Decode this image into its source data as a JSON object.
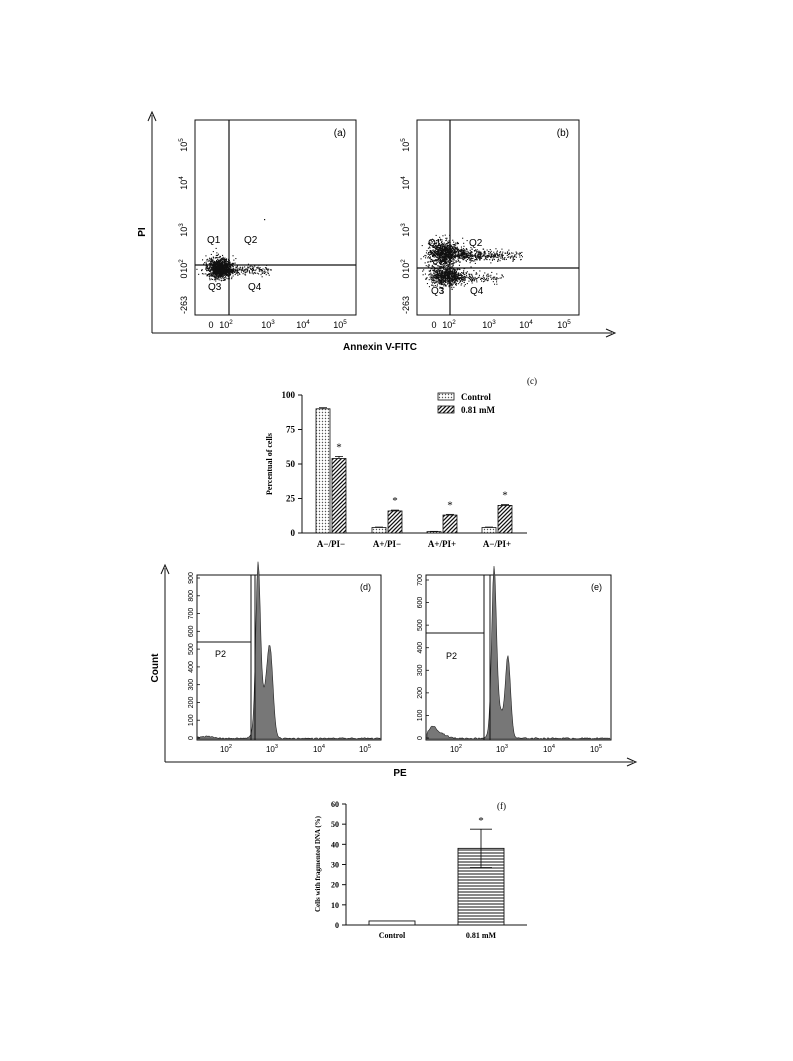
{
  "chart_data": [
    {
      "type": "scatter",
      "panel_label": "(a)",
      "xlabel": "Annexin V-FITC",
      "ylabel": "PI",
      "x_ticks": [
        "0",
        "10",
        "10",
        "10",
        "10"
      ],
      "x_tick_exps": [
        "",
        "2",
        "3",
        "4",
        "5"
      ],
      "y_ticks": [
        "-263",
        "0",
        "10",
        "10",
        "10",
        "10"
      ],
      "y_tick_exps": [
        "",
        "",
        "2",
        "3",
        "4",
        "5"
      ],
      "quadrants": [
        "Q1",
        "Q2",
        "Q3",
        "Q4"
      ]
    },
    {
      "type": "scatter",
      "panel_label": "(b)",
      "x_ticks": [
        "0",
        "10",
        "10",
        "10",
        "10"
      ],
      "x_tick_exps": [
        "",
        "2",
        "3",
        "4",
        "5"
      ],
      "y_ticks": [
        "-263",
        "0",
        "10",
        "10",
        "10",
        "10"
      ],
      "y_tick_exps": [
        "",
        "",
        "2",
        "3",
        "4",
        "5"
      ],
      "quadrants": [
        "Q1",
        "Q2",
        "Q3",
        "Q4"
      ]
    },
    {
      "type": "bar",
      "panel_label": "(c)",
      "ylabel": "Percentual of cells",
      "categories": [
        "A−/PI−",
        "A+/PI−",
        "A+/PI+",
        "A−/PI+"
      ],
      "ylim": [
        0,
        100
      ],
      "yticks": [
        "0",
        "25",
        "50",
        "75",
        "100"
      ],
      "series": [
        {
          "name": "Control",
          "values": [
            90,
            4,
            1,
            4
          ],
          "errors": [
            0.8,
            0.3,
            0.2,
            0.3
          ]
        },
        {
          "name": "0.81 mM",
          "values": [
            54,
            16,
            13,
            20
          ],
          "errors": [
            1.5,
            0.6,
            0.5,
            0.6
          ]
        }
      ],
      "significance": [
        "*",
        "*",
        "*",
        "*"
      ]
    },
    {
      "type": "area",
      "panel_label": "(d)",
      "ylabel": "Count",
      "y_ticks": [
        "0",
        "100",
        "200",
        "300",
        "400",
        "500",
        "600",
        "700",
        "800",
        "900"
      ],
      "x_ticks": [
        "10",
        "10",
        "10",
        "10"
      ],
      "x_tick_exps": [
        "2",
        "3",
        "4",
        "5"
      ],
      "gate": "P2"
    },
    {
      "type": "area",
      "panel_label": "(e)",
      "xlabel": "PE",
      "y_ticks": [
        "0",
        "100",
        "200",
        "300",
        "400",
        "500",
        "600",
        "700"
      ],
      "x_ticks": [
        "10",
        "10",
        "10",
        "10"
      ],
      "x_tick_exps": [
        "2",
        "3",
        "4",
        "5"
      ],
      "gate": "P2"
    },
    {
      "type": "bar",
      "panel_label": "(f)",
      "ylabel": "Cells with fragmented DNA (%)",
      "categories": [
        "Control",
        "0.81 mM"
      ],
      "values": [
        2,
        38
      ],
      "errors": [
        0.3,
        9.5
      ],
      "ylim": [
        0,
        60
      ],
      "yticks": [
        "0",
        "10",
        "20",
        "30",
        "40",
        "50",
        "60"
      ],
      "significance": [
        "",
        "*"
      ]
    }
  ],
  "colors": {
    "ink": "#111111",
    "histogram_fill": "#777777"
  }
}
